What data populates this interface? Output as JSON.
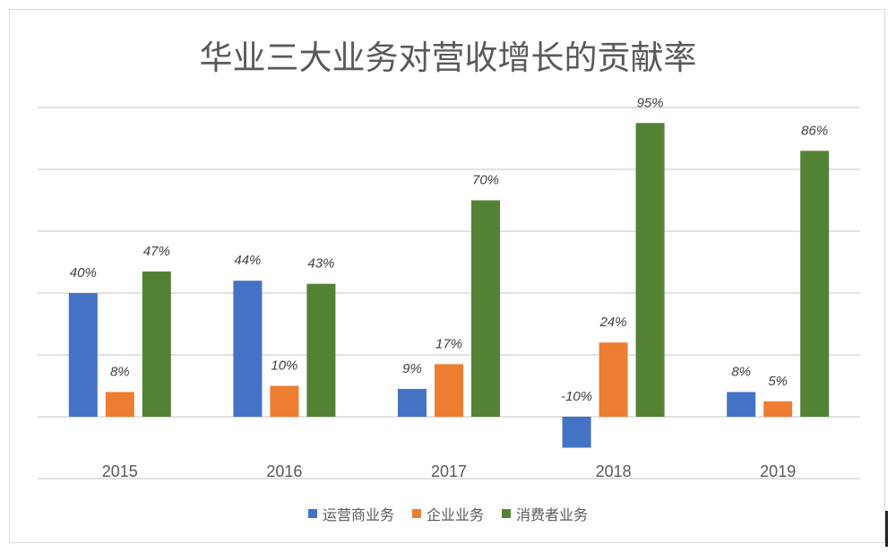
{
  "chart_data": {
    "type": "bar",
    "title": "华业三大业务对营收增长的贡献率",
    "categories": [
      "2015",
      "2016",
      "2017",
      "2018",
      "2019"
    ],
    "series": [
      {
        "name": "运营商业务",
        "color": "#4472c4",
        "values": [
          40,
          44,
          9,
          -10,
          8
        ]
      },
      {
        "name": "企业业务",
        "color": "#ed7d31",
        "values": [
          8,
          10,
          17,
          24,
          5
        ]
      },
      {
        "name": "消费者业务",
        "color": "#548235",
        "values": [
          47,
          43,
          70,
          95,
          86
        ]
      }
    ],
    "data_labels": [
      [
        "40%",
        "44%",
        "9%",
        "-10%",
        "8%"
      ],
      [
        "8%",
        "10%",
        "17%",
        "24%",
        "5%"
      ],
      [
        "47%",
        "43%",
        "70%",
        "95%",
        "86%"
      ]
    ],
    "ylim": [
      -20,
      100
    ],
    "y_gridlines": [
      -20,
      0,
      20,
      40,
      60,
      80,
      100
    ],
    "grid": true,
    "y_tick_labels_shown": false,
    "legend_position": "bottom"
  }
}
